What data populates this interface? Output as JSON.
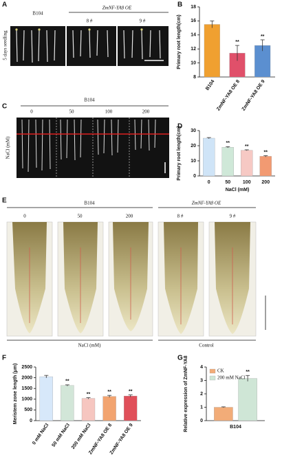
{
  "panels": {
    "A": "A",
    "C": "C",
    "E": "E"
  },
  "photo_a": {
    "group1": "B104",
    "group2": "ZmNF-YA8 OE",
    "line8": "8 #",
    "line9": "9 #",
    "side": "5 days seedling"
  },
  "photo_c": {
    "group": "B104",
    "doses": [
      "0",
      "50",
      "100",
      "200"
    ],
    "side": "NaCl (mM)"
  },
  "photo_e": {
    "group1": "B104",
    "group2": "ZmNF-YA8 OE",
    "doses": [
      "0",
      "50",
      "200"
    ],
    "lines": [
      "8 #",
      "9 #"
    ],
    "footer1": "NaCl (mM)",
    "footer2": "Control"
  },
  "chart_data": [
    {
      "type": "bar",
      "panel": "B",
      "ylabel": "Primary root length(cm)",
      "categories": [
        "B104",
        "ZmNF-YA8 OE 8",
        "ZmNF-YA8 OE 9"
      ],
      "values": [
        15.5,
        11.4,
        12.5
      ],
      "errors": [
        0.5,
        1.1,
        0.8
      ],
      "significance": [
        null,
        "**",
        "**"
      ],
      "colors": [
        "#f0a030",
        "#e0506a",
        "#5b8fd0"
      ],
      "ylim": [
        8,
        18
      ],
      "yticks": [
        8,
        10,
        12,
        14,
        16,
        18
      ]
    },
    {
      "type": "bar",
      "panel": "D",
      "ylabel": "Primary root length(cm)",
      "xlabel": "NaCl (mM)",
      "categories": [
        "0",
        "50",
        "100",
        "200"
      ],
      "values": [
        25,
        19,
        17,
        13
      ],
      "errors": [
        0.4,
        0.4,
        0.3,
        0.4
      ],
      "significance": [
        null,
        "**",
        "**",
        "**"
      ],
      "colors": [
        "#cfe4f7",
        "#cfe8d8",
        "#f6c9c4",
        "#f29a72"
      ],
      "ylim": [
        0,
        30
      ],
      "yticks": [
        0,
        10,
        20,
        30
      ]
    },
    {
      "type": "bar",
      "panel": "F",
      "ylabel": "Meristem zone length (μm)",
      "categories": [
        "0 mM NaCl",
        "50 mM NaCl",
        "200 mM NaCl",
        "ZmNF-YA8 OE 8",
        "ZmNF-YA8 OE 9"
      ],
      "values": [
        2050,
        1640,
        1040,
        1130,
        1150
      ],
      "errors": [
        60,
        30,
        30,
        50,
        50
      ],
      "significance": [
        null,
        "**",
        "**",
        "**",
        "**"
      ],
      "colors": [
        "#d7e8fa",
        "#d2e6d8",
        "#f6c6c0",
        "#f2a470",
        "#e0505a"
      ],
      "ylim": [
        0,
        2500
      ],
      "yticks": [
        0,
        500,
        1000,
        1500,
        2000,
        2500
      ]
    },
    {
      "type": "grouped-bar",
      "panel": "G",
      "ylabel": "Relative expression of ZmNF-YA8",
      "categories": [
        "B104"
      ],
      "series": [
        {
          "name": "CK",
          "color": "#f2ac78",
          "values": [
            1.0
          ],
          "errors": [
            0.03
          ],
          "significance": [
            null
          ]
        },
        {
          "name": "200 mM NaCl",
          "color": "#cfe6d6",
          "values": [
            3.15
          ],
          "errors": [
            0.22
          ],
          "significance": [
            "**"
          ]
        }
      ],
      "ylim": [
        0,
        4
      ],
      "yticks": [
        0,
        1,
        2,
        3,
        4
      ]
    }
  ]
}
